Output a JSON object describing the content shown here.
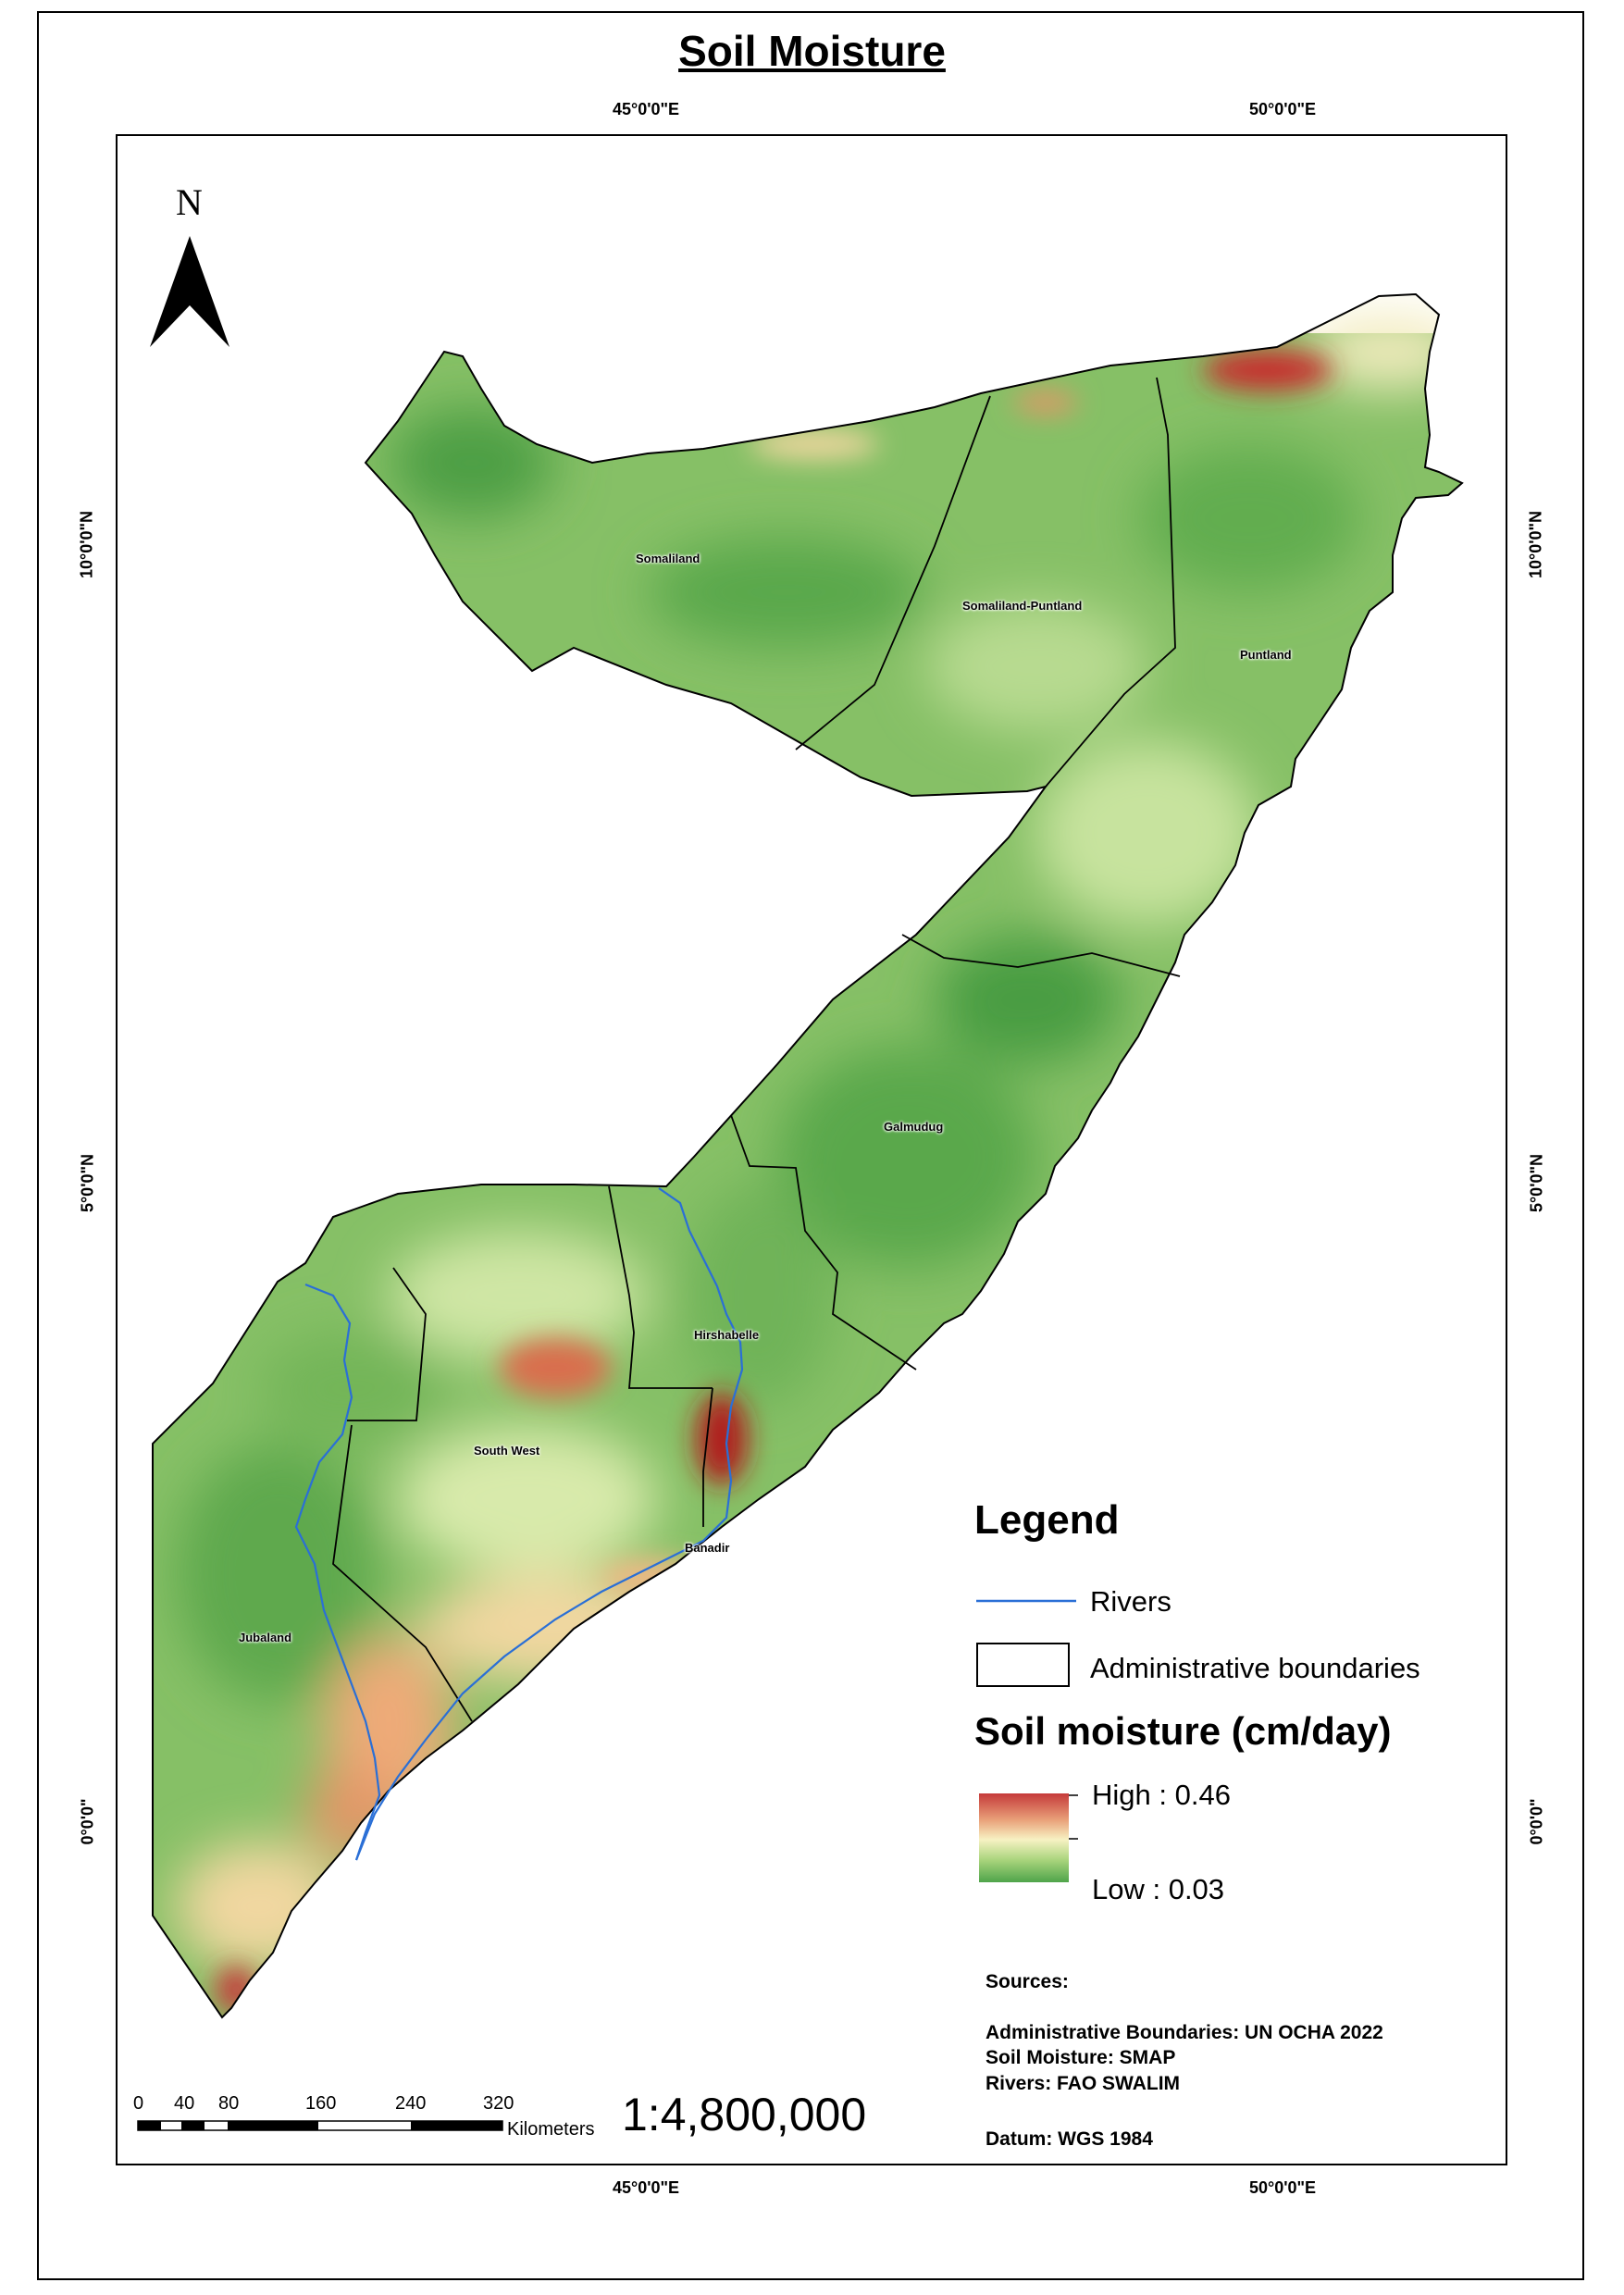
{
  "title": "Soil Moisture",
  "graticule": {
    "top": [
      "45°0'0\"E",
      "50°0'0\"E"
    ],
    "bottom": [
      "45°0'0\"E",
      "50°0'0\"E"
    ],
    "left": [
      "10°0'0\"N",
      "5°0'0\"N",
      "0°0'0\""
    ],
    "right": [
      "10°0'0\"N",
      "5°0'0\"N",
      "0°0'0\""
    ]
  },
  "north_arrow": {
    "label": "N"
  },
  "regions": [
    "Somaliland",
    "Somaliland-Puntland",
    "Puntland",
    "Galmudug",
    "Hirshabelle",
    "South West",
    "Banadir",
    "Jubaland"
  ],
  "legend": {
    "title": "Legend",
    "rivers_label": "Rivers",
    "boundaries_label": "Administrative boundaries",
    "soil_title": "Soil moisture (cm/day)",
    "high": "High : 0.46",
    "low": "Low : 0.03"
  },
  "sources": {
    "heading": "Sources:",
    "admin": "Administrative Boundaries: UN OCHA 2022",
    "soil": "Soil Moisture: SMAP",
    "rivers": "Rivers: FAO SWALIM",
    "datum": "Datum: WGS 1984"
  },
  "scale": {
    "ticks": [
      "0",
      "40",
      "80",
      "160",
      "240",
      "320"
    ],
    "unit": "Kilometers",
    "ratio": "1:4,800,000"
  },
  "colors": {
    "high": "#c53a3a",
    "mid": "#f7f2c3",
    "low": "#4fa44a",
    "river": "#2a6fd6"
  }
}
